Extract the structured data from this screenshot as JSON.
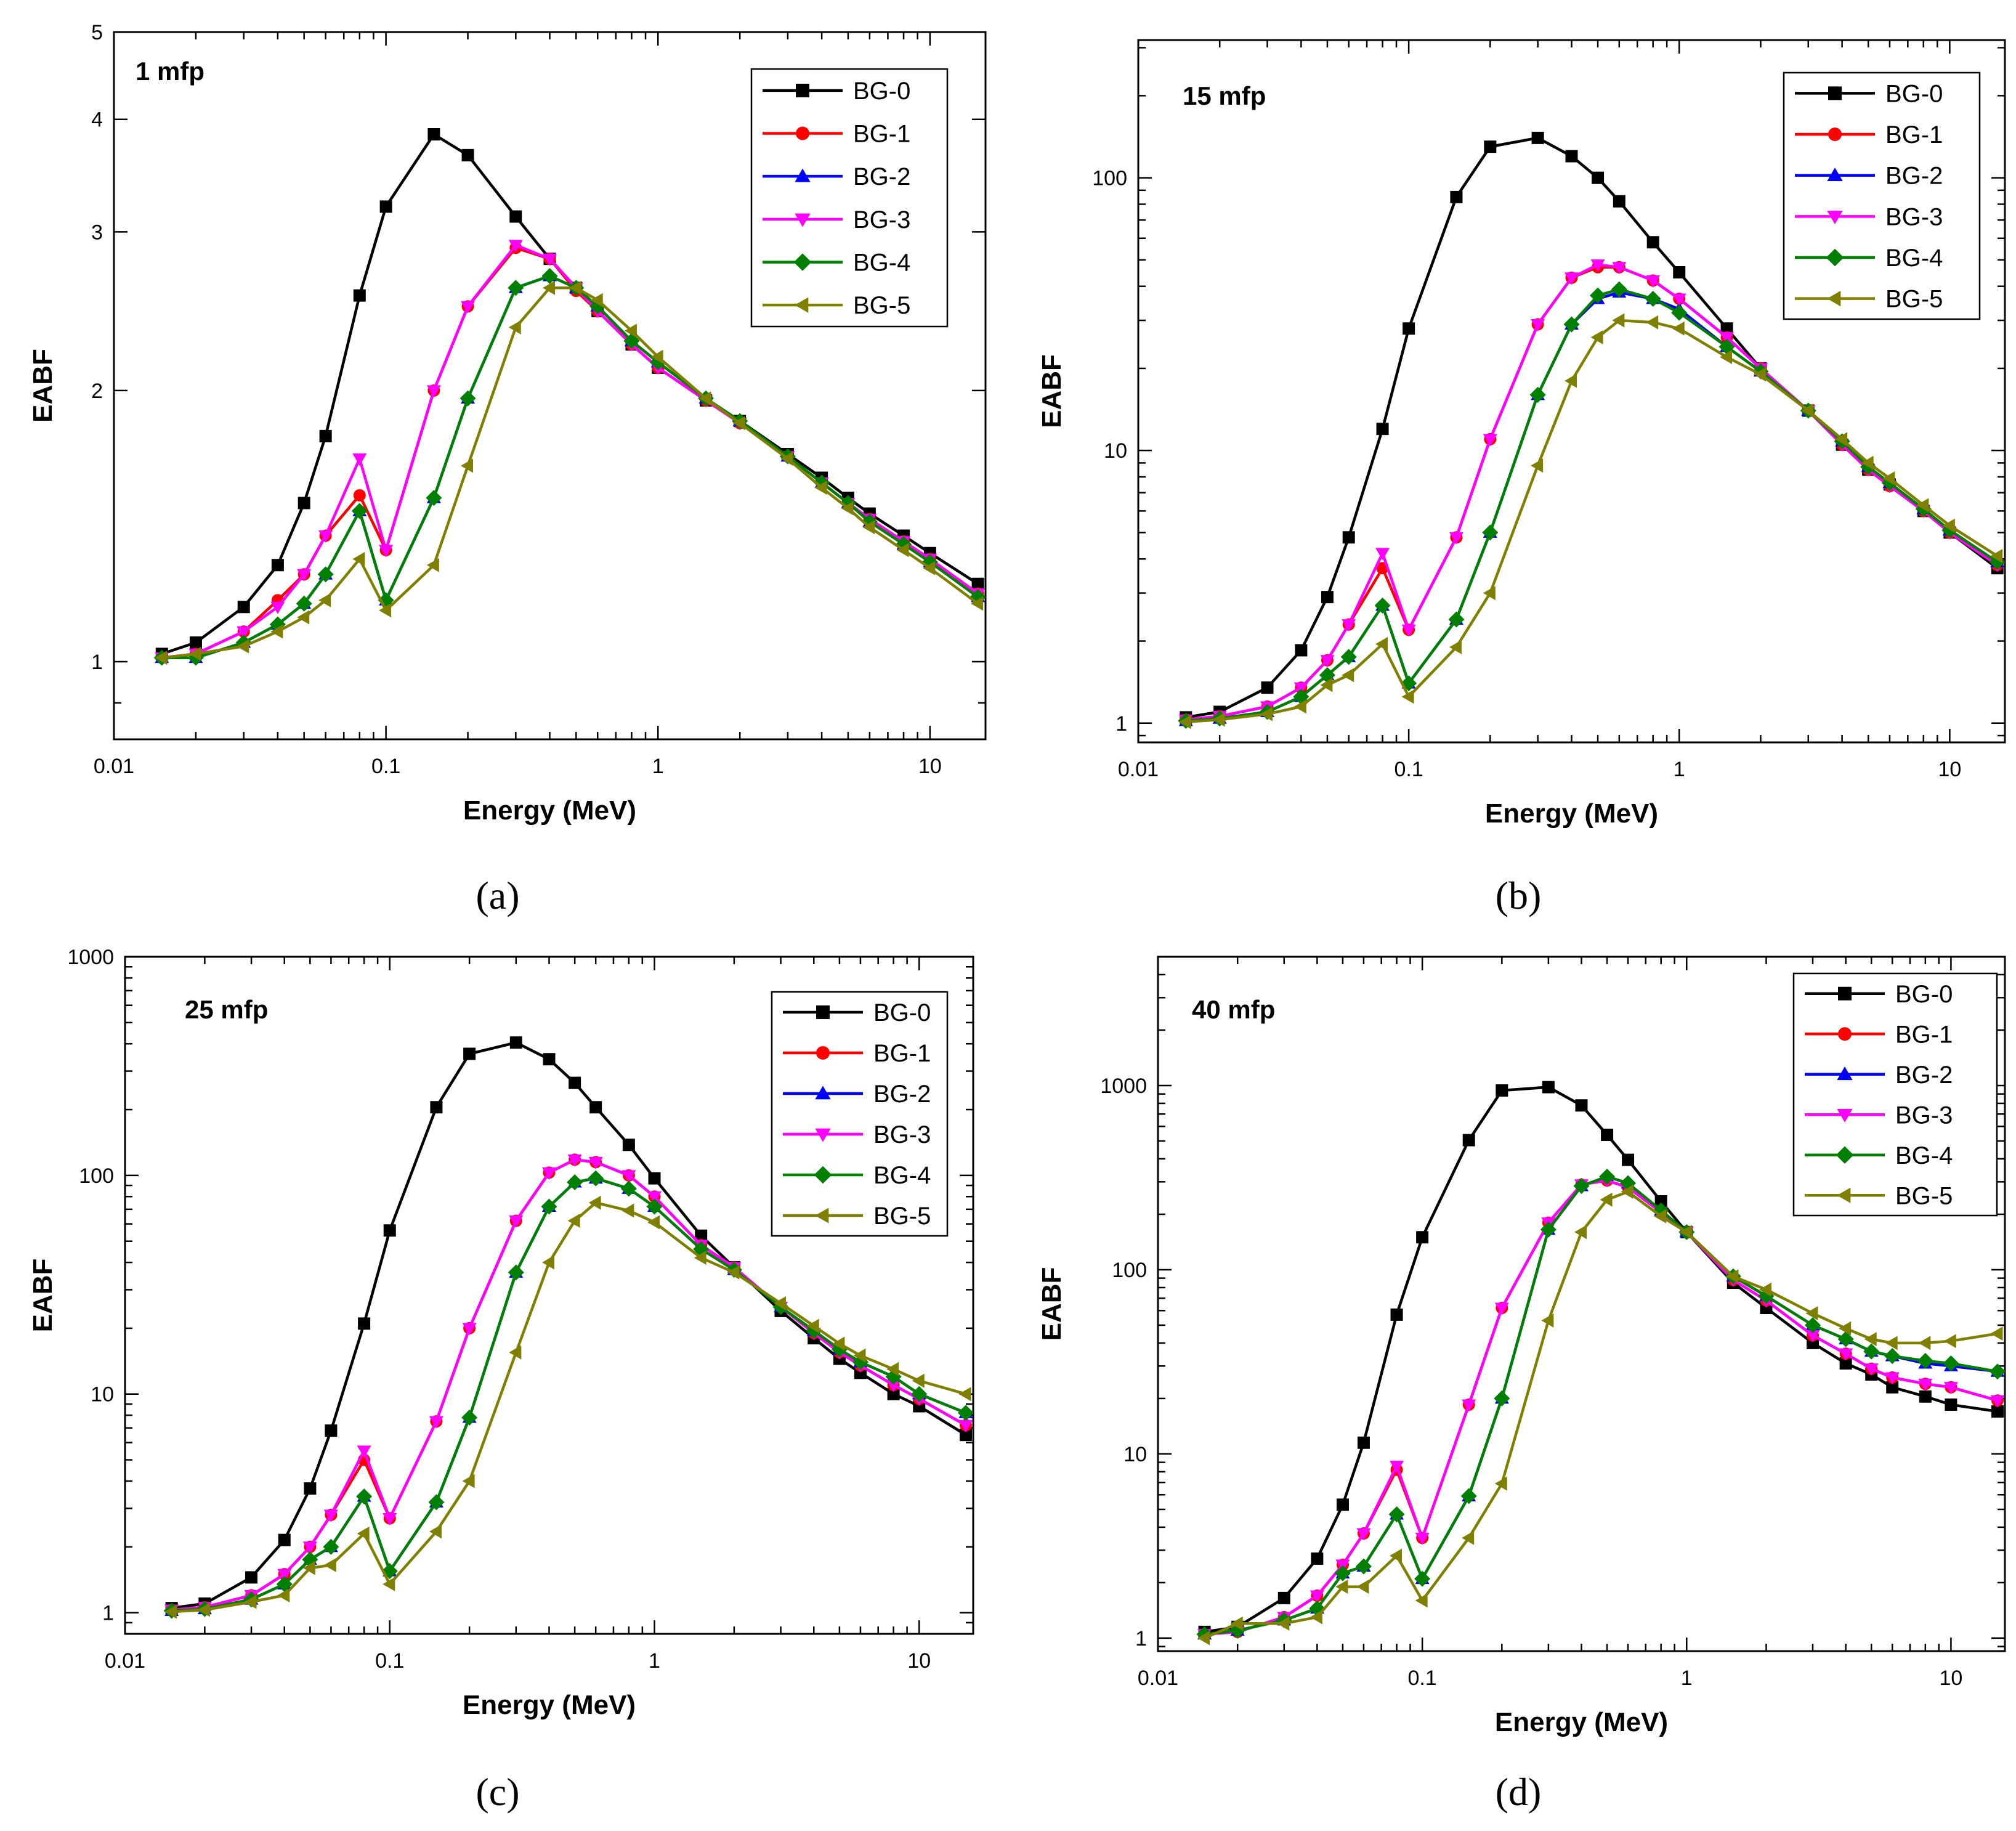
{
  "chart_data": [
    {
      "type": "line",
      "panel_caption": "(a)",
      "annotation": "1 mfp",
      "xlabel": "Energy (MeV)",
      "ylabel": "EABF",
      "x_scale": "log",
      "y_scale": "log",
      "xlim": [
        0.01,
        16
      ],
      "ylim": [
        0.82,
        5
      ],
      "x_ticks": [
        0.01,
        0.1,
        1,
        10
      ],
      "x_tick_labels": [
        "0.01",
        "0.1",
        "1",
        "10"
      ],
      "y_ticks": [
        1,
        2,
        3,
        4,
        5
      ],
      "y_tick_labels": [
        "1",
        "2",
        "3",
        "4",
        "5"
      ],
      "legend_position": "top-right",
      "x": [
        0.015,
        0.02,
        0.03,
        0.04,
        0.05,
        0.06,
        0.08,
        0.1,
        0.15,
        0.2,
        0.3,
        0.4,
        0.5,
        0.6,
        0.8,
        1,
        1.5,
        2,
        3,
        4,
        5,
        6,
        8,
        10,
        15
      ],
      "series": [
        {
          "name": "BG-0",
          "color": "#000000",
          "marker": "square",
          "values": [
            1.02,
            1.05,
            1.15,
            1.28,
            1.5,
            1.78,
            2.55,
            3.2,
            3.85,
            3.65,
            3.12,
            2.8,
            2.6,
            2.45,
            2.25,
            2.12,
            1.95,
            1.85,
            1.7,
            1.6,
            1.52,
            1.46,
            1.38,
            1.32,
            1.22
          ]
        },
        {
          "name": "BG-1",
          "color": "#ff0000",
          "marker": "circle",
          "values": [
            1.01,
            1.02,
            1.08,
            1.17,
            1.25,
            1.38,
            1.53,
            1.33,
            2.0,
            2.48,
            2.88,
            2.8,
            2.58,
            2.45,
            2.25,
            2.12,
            1.95,
            1.84,
            1.69,
            1.58,
            1.5,
            1.44,
            1.36,
            1.3,
            1.19
          ]
        },
        {
          "name": "BG-2",
          "color": "#0000ff",
          "marker": "triangle-up",
          "values": [
            1.01,
            1.01,
            1.05,
            1.1,
            1.16,
            1.25,
            1.47,
            1.17,
            1.52,
            1.96,
            2.6,
            2.68,
            2.6,
            2.48,
            2.27,
            2.15,
            1.96,
            1.85,
            1.69,
            1.58,
            1.5,
            1.43,
            1.35,
            1.29,
            1.18
          ]
        },
        {
          "name": "BG-3",
          "color": "#ff00ff",
          "marker": "triangle-down",
          "values": [
            1.01,
            1.02,
            1.08,
            1.15,
            1.25,
            1.38,
            1.68,
            1.33,
            2.0,
            2.48,
            2.9,
            2.8,
            2.6,
            2.45,
            2.25,
            2.12,
            1.95,
            1.84,
            1.69,
            1.58,
            1.5,
            1.44,
            1.36,
            1.3,
            1.19
          ]
        },
        {
          "name": "BG-4",
          "color": "#008000",
          "marker": "diamond",
          "values": [
            1.01,
            1.01,
            1.05,
            1.1,
            1.16,
            1.25,
            1.47,
            1.17,
            1.52,
            1.96,
            2.6,
            2.68,
            2.6,
            2.48,
            2.27,
            2.15,
            1.96,
            1.85,
            1.69,
            1.58,
            1.5,
            1.43,
            1.35,
            1.29,
            1.18
          ]
        },
        {
          "name": "BG-5",
          "color": "#808000",
          "marker": "triangle-left",
          "values": [
            1.01,
            1.02,
            1.04,
            1.08,
            1.12,
            1.17,
            1.3,
            1.14,
            1.28,
            1.65,
            2.35,
            2.6,
            2.6,
            2.52,
            2.33,
            2.18,
            1.96,
            1.84,
            1.68,
            1.56,
            1.48,
            1.41,
            1.33,
            1.27,
            1.16
          ]
        }
      ]
    },
    {
      "type": "line",
      "panel_caption": "(b)",
      "annotation": "15 mfp",
      "xlabel": "Energy (MeV)",
      "ylabel": "EABF",
      "x_scale": "log",
      "y_scale": "log",
      "xlim": [
        0.01,
        16
      ],
      "ylim": [
        0.85,
        320
      ],
      "x_ticks": [
        0.01,
        0.1,
        1,
        10
      ],
      "x_tick_labels": [
        "0.01",
        "0.1",
        "1",
        "10"
      ],
      "y_ticks": [
        1,
        10,
        100
      ],
      "y_tick_labels": [
        "1",
        "10",
        "100"
      ],
      "legend_position": "top-right",
      "x": [
        0.015,
        0.02,
        0.03,
        0.04,
        0.05,
        0.06,
        0.08,
        0.1,
        0.15,
        0.2,
        0.3,
        0.4,
        0.5,
        0.6,
        0.8,
        1,
        1.5,
        2,
        3,
        4,
        5,
        6,
        8,
        10,
        15
      ],
      "series": [
        {
          "name": "BG-0",
          "color": "#000000",
          "marker": "square",
          "values": [
            1.05,
            1.1,
            1.35,
            1.85,
            2.9,
            4.8,
            12,
            28,
            85,
            130,
            140,
            120,
            100,
            82,
            58,
            45,
            28,
            20,
            14,
            10.5,
            8.5,
            7.5,
            6,
            5,
            3.7
          ]
        },
        {
          "name": "BG-1",
          "color": "#ff0000",
          "marker": "circle",
          "values": [
            1.03,
            1.06,
            1.15,
            1.35,
            1.7,
            2.3,
            3.7,
            2.2,
            4.8,
            11,
            29,
            43,
            47,
            47,
            42,
            36,
            26,
            20,
            14,
            10.5,
            8.5,
            7.4,
            6,
            5,
            3.8
          ]
        },
        {
          "name": "BG-2",
          "color": "#0000ff",
          "marker": "triangle-up",
          "values": [
            1.02,
            1.04,
            1.1,
            1.25,
            1.5,
            1.75,
            2.7,
            1.4,
            2.4,
            5,
            16,
            29,
            36,
            38,
            36,
            33,
            24,
            19.5,
            14,
            10.8,
            8.7,
            7.6,
            6.1,
            5.1,
            3.9
          ]
        },
        {
          "name": "BG-3",
          "color": "#ff00ff",
          "marker": "triangle-down",
          "values": [
            1.03,
            1.06,
            1.15,
            1.35,
            1.7,
            2.3,
            4.2,
            2.2,
            4.8,
            11,
            29,
            43,
            48,
            47,
            42,
            36,
            26,
            20,
            14,
            10.5,
            8.5,
            7.4,
            6,
            5,
            3.8
          ]
        },
        {
          "name": "BG-4",
          "color": "#008000",
          "marker": "diamond",
          "values": [
            1.02,
            1.04,
            1.1,
            1.25,
            1.5,
            1.75,
            2.7,
            1.4,
            2.4,
            5,
            16,
            29,
            37,
            39,
            36,
            32,
            24,
            19.5,
            14,
            10.8,
            8.7,
            7.6,
            6.1,
            5.1,
            3.9
          ]
        },
        {
          "name": "BG-5",
          "color": "#808000",
          "marker": "triangle-left",
          "values": [
            1.01,
            1.03,
            1.08,
            1.15,
            1.38,
            1.5,
            1.95,
            1.25,
            1.9,
            3,
            8.8,
            18,
            26,
            30,
            29.5,
            28,
            22,
            19,
            14,
            11,
            9,
            7.9,
            6.3,
            5.3,
            4.1
          ]
        }
      ]
    },
    {
      "type": "line",
      "panel_caption": "(c)",
      "annotation": "25 mfp",
      "xlabel": "Energy (MeV)",
      "ylabel": "EABF",
      "x_scale": "log",
      "y_scale": "log",
      "xlim": [
        0.01,
        16
      ],
      "ylim": [
        0.8,
        1000
      ],
      "x_ticks": [
        0.01,
        0.1,
        1,
        10
      ],
      "x_tick_labels": [
        "0.01",
        "0.1",
        "1",
        "10"
      ],
      "y_ticks": [
        1,
        10,
        100,
        1000
      ],
      "y_tick_labels": [
        "1",
        "10",
        "100",
        "1000"
      ],
      "legend_position": "top-right",
      "x": [
        0.015,
        0.02,
        0.03,
        0.04,
        0.05,
        0.06,
        0.08,
        0.1,
        0.15,
        0.2,
        0.3,
        0.4,
        0.5,
        0.6,
        0.8,
        1,
        1.5,
        2,
        3,
        4,
        5,
        6,
        8,
        10,
        15
      ],
      "series": [
        {
          "name": "BG-0",
          "color": "#000000",
          "marker": "square",
          "values": [
            1.05,
            1.1,
            1.45,
            2.15,
            3.7,
            6.8,
            21,
            56,
            205,
            360,
            405,
            340,
            265,
            205,
            138,
            97,
            53,
            38,
            24,
            18,
            14.5,
            12.5,
            10,
            8.8,
            6.5
          ]
        },
        {
          "name": "BG-1",
          "color": "#ff0000",
          "marker": "circle",
          "values": [
            1.03,
            1.06,
            1.2,
            1.5,
            2.0,
            2.8,
            5.0,
            2.7,
            7.5,
            20,
            62,
            103,
            118,
            115,
            100,
            80,
            48,
            38,
            25,
            19,
            15.5,
            13.5,
            11,
            9.5,
            7.2
          ]
        },
        {
          "name": "BG-2",
          "color": "#0000ff",
          "marker": "triangle-up",
          "values": [
            1.02,
            1.04,
            1.15,
            1.35,
            1.75,
            2.0,
            3.4,
            1.55,
            3.2,
            7.8,
            36,
            72,
            93,
            97,
            87,
            72,
            46,
            37,
            25,
            19.5,
            16,
            14,
            12,
            10,
            8.2
          ]
        },
        {
          "name": "BG-3",
          "color": "#ff00ff",
          "marker": "triangle-down",
          "values": [
            1.03,
            1.06,
            1.2,
            1.5,
            2.0,
            2.8,
            5.5,
            2.7,
            7.5,
            20,
            62,
            103,
            118,
            115,
            100,
            80,
            48,
            38,
            25,
            19,
            15.5,
            13.5,
            11,
            9.5,
            7.2
          ]
        },
        {
          "name": "BG-4",
          "color": "#008000",
          "marker": "diamond",
          "values": [
            1.02,
            1.04,
            1.15,
            1.35,
            1.75,
            2.0,
            3.4,
            1.55,
            3.2,
            7.8,
            36,
            72,
            93,
            97,
            87,
            72,
            46,
            37,
            25,
            19.5,
            16,
            14,
            12,
            10,
            8.2
          ]
        },
        {
          "name": "BG-5",
          "color": "#808000",
          "marker": "triangle-left",
          "values": [
            1.01,
            1.03,
            1.12,
            1.2,
            1.6,
            1.65,
            2.3,
            1.35,
            2.35,
            4.0,
            15.5,
            40,
            62,
            75,
            69,
            61,
            42,
            36,
            26,
            20.5,
            17,
            15,
            13,
            11.5,
            10
          ]
        }
      ]
    },
    {
      "type": "line",
      "panel_caption": "(d)",
      "annotation": "40 mfp",
      "xlabel": "Energy (MeV)",
      "ylabel": "EABF",
      "x_scale": "log",
      "y_scale": "log",
      "xlim": [
        0.01,
        16
      ],
      "ylim": [
        0.85,
        5000
      ],
      "x_ticks": [
        0.01,
        0.1,
        1,
        10
      ],
      "x_tick_labels": [
        "0.01",
        "0.1",
        "1",
        "10"
      ],
      "y_ticks": [
        1,
        10,
        100,
        1000
      ],
      "y_tick_labels": [
        "1",
        "10",
        "100",
        "1000"
      ],
      "legend_position": "top-right",
      "x": [
        0.015,
        0.02,
        0.03,
        0.04,
        0.05,
        0.06,
        0.08,
        0.1,
        0.15,
        0.2,
        0.3,
        0.4,
        0.5,
        0.6,
        0.8,
        1,
        1.5,
        2,
        3,
        4,
        5,
        6,
        8,
        10,
        15
      ],
      "series": [
        {
          "name": "BG-0",
          "color": "#000000",
          "marker": "square",
          "values": [
            1.08,
            1.15,
            1.65,
            2.7,
            5.3,
            11.5,
            57,
            150,
            505,
            940,
            980,
            780,
            540,
            395,
            235,
            160,
            85,
            62,
            40,
            31,
            27,
            23,
            20.5,
            18.5,
            17
          ]
        },
        {
          "name": "BG-1",
          "color": "#ff0000",
          "marker": "circle",
          "values": [
            1.05,
            1.08,
            1.3,
            1.7,
            2.5,
            3.7,
            8.2,
            3.5,
            18.5,
            62,
            180,
            290,
            305,
            280,
            205,
            160,
            88,
            68,
            44,
            35,
            29,
            26,
            24,
            23,
            19.5
          ]
        },
        {
          "name": "BG-2",
          "color": "#0000ff",
          "marker": "triangle-up",
          "values": [
            1.05,
            1.1,
            1.25,
            1.45,
            2.25,
            2.45,
            4.7,
            2.1,
            5.9,
            20,
            165,
            285,
            320,
            295,
            210,
            160,
            92,
            72,
            50,
            42,
            36,
            34,
            31,
            30,
            28
          ]
        },
        {
          "name": "BG-3",
          "color": "#ff00ff",
          "marker": "triangle-down",
          "values": [
            1.05,
            1.08,
            1.3,
            1.7,
            2.5,
            3.7,
            8.6,
            3.5,
            18.5,
            62,
            180,
            290,
            305,
            280,
            205,
            160,
            88,
            68,
            44,
            35,
            29,
            26,
            24,
            23,
            19.5
          ]
        },
        {
          "name": "BG-4",
          "color": "#008000",
          "marker": "diamond",
          "values": [
            1.05,
            1.1,
            1.25,
            1.45,
            2.25,
            2.45,
            4.7,
            2.1,
            5.9,
            20,
            165,
            285,
            320,
            295,
            210,
            160,
            92,
            72,
            50,
            42,
            36,
            34,
            32,
            31,
            28
          ]
        },
        {
          "name": "BG-5",
          "color": "#808000",
          "marker": "triangle-left",
          "values": [
            1.0,
            1.2,
            1.2,
            1.3,
            1.9,
            1.9,
            2.8,
            1.6,
            3.5,
            6.9,
            53,
            160,
            240,
            265,
            195,
            160,
            92,
            78,
            58,
            48,
            42,
            40,
            40,
            41,
            45
          ]
        }
      ]
    }
  ]
}
